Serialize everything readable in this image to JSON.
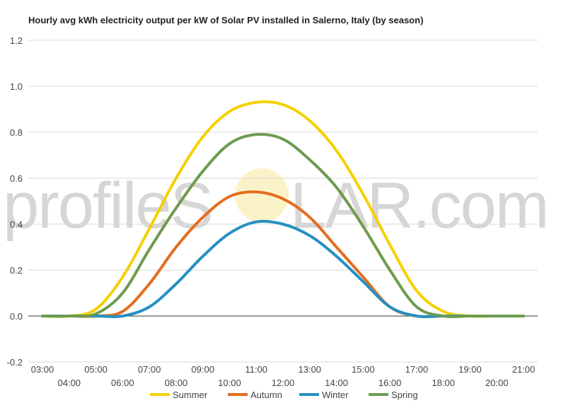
{
  "chart_data": {
    "type": "line",
    "title": "Hourly avg kWh electricity output per kW of Solar PV installed in Salerno, Italy (by season)",
    "xlabel": "",
    "ylabel": "",
    "x": [
      "03:00",
      "04:00",
      "05:00",
      "06:00",
      "07:00",
      "08:00",
      "09:00",
      "10:00",
      "11:00",
      "12:00",
      "13:00",
      "14:00",
      "15:00",
      "16:00",
      "17:00",
      "18:00",
      "19:00",
      "20:00",
      "21:00"
    ],
    "ylim": [
      -0.2,
      1.2
    ],
    "yticks": [
      "-0.2",
      "0.0",
      "0.2",
      "0.4",
      "0.6",
      "0.8",
      "1.0",
      "1.2"
    ],
    "grid": true,
    "legend_position": "bottom",
    "watermark": {
      "left": "profileS",
      "right": "LAR.com"
    },
    "series": [
      {
        "name": "Summer",
        "color": "#f5d000",
        "values": [
          0,
          0,
          0.03,
          0.17,
          0.38,
          0.6,
          0.78,
          0.89,
          0.93,
          0.92,
          0.85,
          0.72,
          0.53,
          0.31,
          0.11,
          0.02,
          0,
          0,
          0
        ]
      },
      {
        "name": "Autumn",
        "color": "#e46d1e",
        "values": [
          0,
          0,
          0,
          0.02,
          0.14,
          0.3,
          0.43,
          0.52,
          0.54,
          0.51,
          0.43,
          0.3,
          0.17,
          0.04,
          0,
          0,
          0,
          0,
          0
        ]
      },
      {
        "name": "Winter",
        "color": "#2590c2",
        "values": [
          0,
          0,
          0,
          0,
          0.04,
          0.14,
          0.26,
          0.36,
          0.41,
          0.4,
          0.35,
          0.26,
          0.15,
          0.04,
          0,
          0,
          0,
          0,
          0
        ]
      },
      {
        "name": "Spring",
        "color": "#6d9b4f",
        "values": [
          0,
          0,
          0.01,
          0.1,
          0.29,
          0.47,
          0.63,
          0.75,
          0.79,
          0.77,
          0.68,
          0.56,
          0.39,
          0.2,
          0.04,
          0,
          0,
          0,
          0
        ]
      }
    ]
  }
}
